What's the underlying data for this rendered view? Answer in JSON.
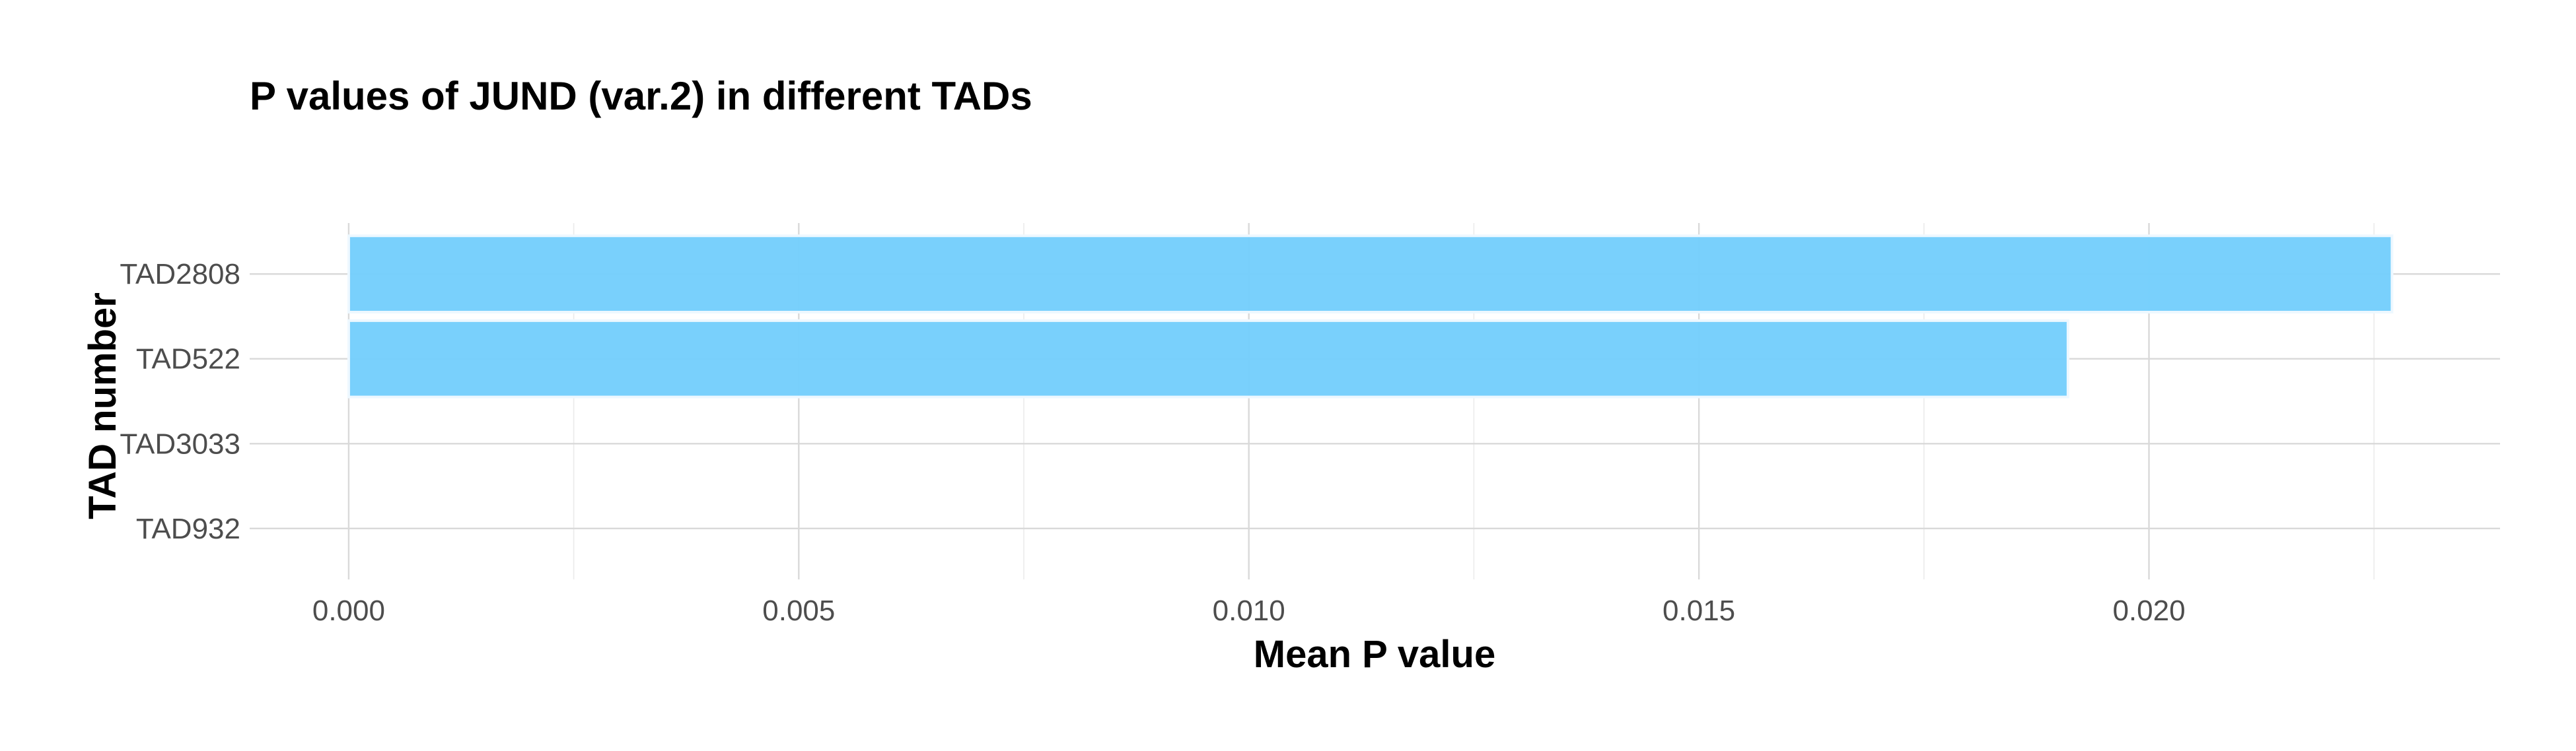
{
  "chart_data": {
    "type": "bar",
    "orientation": "horizontal",
    "title": "P values of JUND (var.2) in different TADs",
    "xlabel": "Mean P value",
    "ylabel": "TAD number",
    "categories": [
      "TAD2808",
      "TAD522",
      "TAD3033",
      "TAD932"
    ],
    "values": [
      0.0227,
      0.0191,
      0.0,
      0.0
    ],
    "xlim": [
      -0.0011,
      0.0239
    ],
    "xticks": [
      0.0,
      0.005,
      0.01,
      0.015,
      0.02
    ],
    "xtick_labels": [
      "0.000",
      "0.005",
      "0.010",
      "0.015",
      "0.020"
    ],
    "grid": true,
    "legend": "none",
    "bar_color": "#75cefc",
    "bar_outline_color": "#eef8ff"
  }
}
